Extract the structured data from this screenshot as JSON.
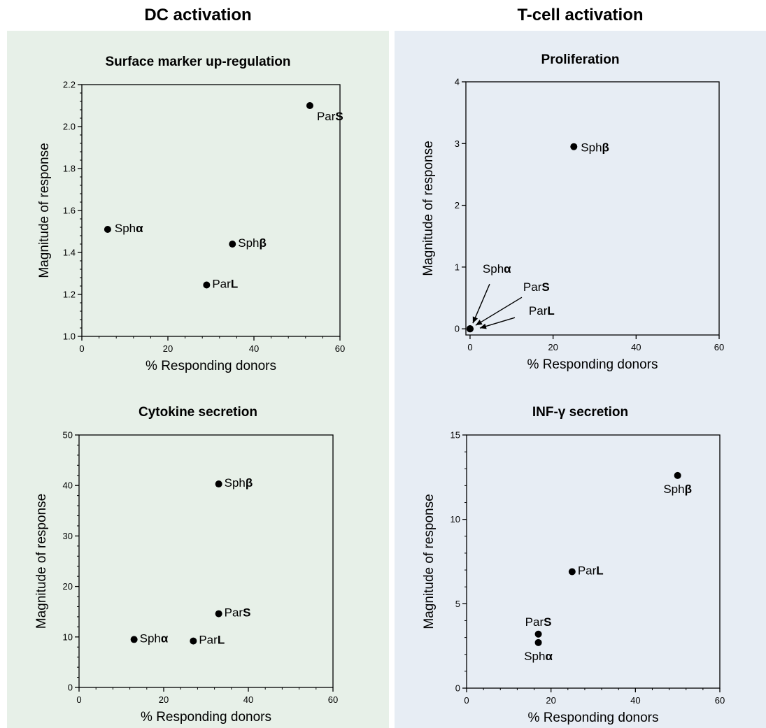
{
  "sections": [
    {
      "title": "DC activation",
      "background": "#e7f0e8"
    },
    {
      "title": "T-cell activation",
      "background": "#e7edf4"
    }
  ],
  "chart_data": [
    {
      "type": "scatter",
      "title": "Surface marker up-regulation",
      "xlabel": "% Responding donors",
      "ylabel": "Magnitude of response",
      "xlim": [
        0,
        60
      ],
      "ylim": [
        1.0,
        2.2
      ],
      "xticks": [
        "0",
        "20",
        "40",
        "60"
      ],
      "yticks": [
        "1.0",
        "1.2",
        "1.4",
        "1.6",
        "1.8",
        "2.0",
        "2.2"
      ],
      "points": [
        {
          "prefix": "Par",
          "suffix": "S",
          "x": 53,
          "y": 2.1
        },
        {
          "prefix": "Sph",
          "suffix": "α",
          "x": 6,
          "y": 1.51
        },
        {
          "prefix": "Sph",
          "suffix": "β",
          "x": 35,
          "y": 1.44
        },
        {
          "prefix": "Par",
          "suffix": "L",
          "x": 29,
          "y": 1.245
        }
      ]
    },
    {
      "type": "scatter",
      "title": "Proliferation",
      "xlabel": "% Responding donors",
      "ylabel": "Magnitude of response",
      "xlim": [
        -1,
        60
      ],
      "ylim": [
        -0.1,
        4
      ],
      "xticks": [
        "0",
        "20",
        "40",
        "60"
      ],
      "yticks": [
        "0",
        "1",
        "2",
        "3",
        "4"
      ],
      "points": [
        {
          "prefix": "Sph",
          "suffix": "β",
          "x": 25,
          "y": 2.95
        },
        {
          "prefix": "Sph",
          "suffix": "α",
          "x": 0,
          "y": 0
        },
        {
          "prefix": "Par",
          "suffix": "S",
          "x": 0,
          "y": 0
        },
        {
          "prefix": "Par",
          "suffix": "L",
          "x": 0,
          "y": 0
        }
      ]
    },
    {
      "type": "scatter",
      "title": "Cytokine secretion",
      "xlabel": "% Responding donors",
      "ylabel": "Magnitude of response",
      "xlim": [
        0,
        60
      ],
      "ylim": [
        0,
        50
      ],
      "xticks": [
        "0",
        "20",
        "40",
        "60"
      ],
      "yticks": [
        "0",
        "10",
        "20",
        "30",
        "40",
        "50"
      ],
      "points": [
        {
          "prefix": "Sph",
          "suffix": "β",
          "x": 33,
          "y": 40.3
        },
        {
          "prefix": "Par",
          "suffix": "S",
          "x": 33,
          "y": 14.6
        },
        {
          "prefix": "Sph",
          "suffix": "α",
          "x": 13,
          "y": 9.5
        },
        {
          "prefix": "Par",
          "suffix": "L",
          "x": 27,
          "y": 9.2
        }
      ]
    },
    {
      "type": "scatter",
      "title": "INF-γ secretion",
      "xlabel": "% Responding donors",
      "ylabel": "Magnitude of response",
      "xlim": [
        0,
        60
      ],
      "ylim": [
        0,
        15
      ],
      "xticks": [
        "0",
        "20",
        "40",
        "60"
      ],
      "yticks": [
        "0",
        "5",
        "10",
        "15"
      ],
      "points": [
        {
          "prefix": "Sph",
          "suffix": "β",
          "x": 50,
          "y": 12.6
        },
        {
          "prefix": "Par",
          "suffix": "L",
          "x": 25,
          "y": 6.9
        },
        {
          "prefix": "Par",
          "suffix": "S",
          "x": 17,
          "y": 3.2
        },
        {
          "prefix": "Sph",
          "suffix": "α",
          "x": 17,
          "y": 2.7
        }
      ]
    }
  ]
}
